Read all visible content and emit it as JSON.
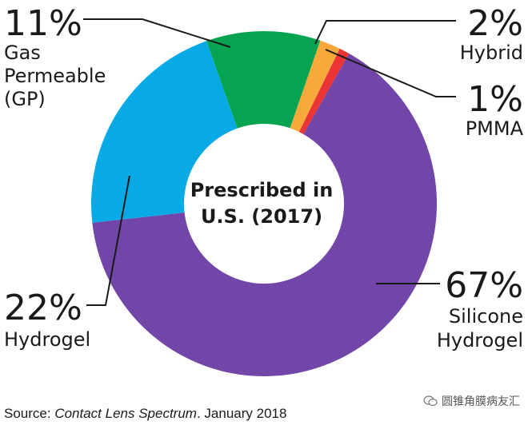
{
  "chart_data": {
    "type": "pie",
    "center_label": [
      "Prescribed in",
      "U.S. (2017)"
    ],
    "slices": [
      {
        "name": "Silicone Hydrogel",
        "value": 67,
        "pct_label": "67%",
        "label_lines": [
          "Silicone",
          "Hydrogel"
        ],
        "color": "#7245a8"
      },
      {
        "name": "Hydrogel",
        "value": 22,
        "pct_label": "22%",
        "label_lines": [
          "Hydrogel"
        ],
        "color": "#08aae6"
      },
      {
        "name": "Gas Permeable (GP)",
        "value": 11,
        "pct_label": "11%",
        "label_lines": [
          "Gas",
          "Permeable",
          "(GP)"
        ],
        "color": "#06a450"
      },
      {
        "name": "Hybrid",
        "value": 2,
        "pct_label": "2%",
        "label_lines": [
          "Hybrid"
        ],
        "color": "#f8a93c"
      },
      {
        "name": "PMMA",
        "value": 1,
        "pct_label": "1%",
        "label_lines": [
          "PMMA"
        ],
        "color": "#ec3434"
      }
    ]
  },
  "source": {
    "prefix": "Source: ",
    "publication": "Contact Lens Spectrum",
    "suffix": ". January 2018"
  },
  "watermark": {
    "text": "圆锥角膜病友汇"
  }
}
